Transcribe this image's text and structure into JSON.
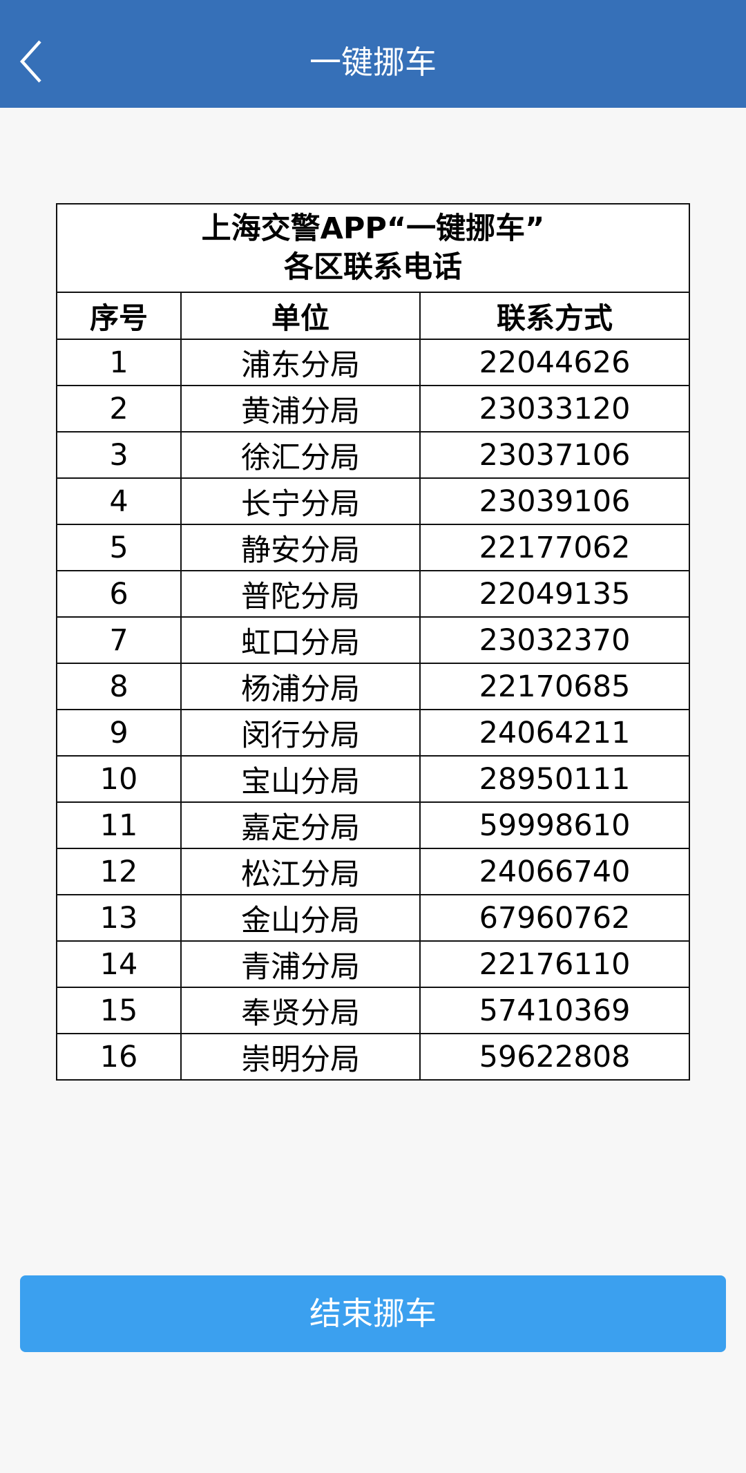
{
  "header": {
    "title": "一键挪车",
    "back_icon": "chevron-left-icon"
  },
  "colors": {
    "header_bg": "#3670b8",
    "button_bg": "#3ba0ef",
    "page_bg": "#f7f7f7"
  },
  "table": {
    "title_line1": "上海交警APP“一键挪车”",
    "title_line2": "各区联系电话",
    "columns": [
      "序号",
      "单位",
      "联系方式"
    ],
    "rows": [
      [
        "1",
        "浦东分局",
        "22044626"
      ],
      [
        "2",
        "黄浦分局",
        "23033120"
      ],
      [
        "3",
        "徐汇分局",
        "23037106"
      ],
      [
        "4",
        "长宁分局",
        "23039106"
      ],
      [
        "5",
        "静安分局",
        "22177062"
      ],
      [
        "6",
        "普陀分局",
        "22049135"
      ],
      [
        "7",
        "虹口分局",
        "23032370"
      ],
      [
        "8",
        "杨浦分局",
        "22170685"
      ],
      [
        "9",
        "闵行分局",
        "24064211"
      ],
      [
        "10",
        "宝山分局",
        "28950111"
      ],
      [
        "11",
        "嘉定分局",
        "59998610"
      ],
      [
        "12",
        "松江分局",
        "24066740"
      ],
      [
        "13",
        "金山分局",
        "67960762"
      ],
      [
        "14",
        "青浦分局",
        "22176110"
      ],
      [
        "15",
        "奉贤分局",
        "57410369"
      ],
      [
        "16",
        "崇明分局",
        "59622808"
      ]
    ]
  },
  "footer": {
    "end_button": "结束挪车"
  }
}
